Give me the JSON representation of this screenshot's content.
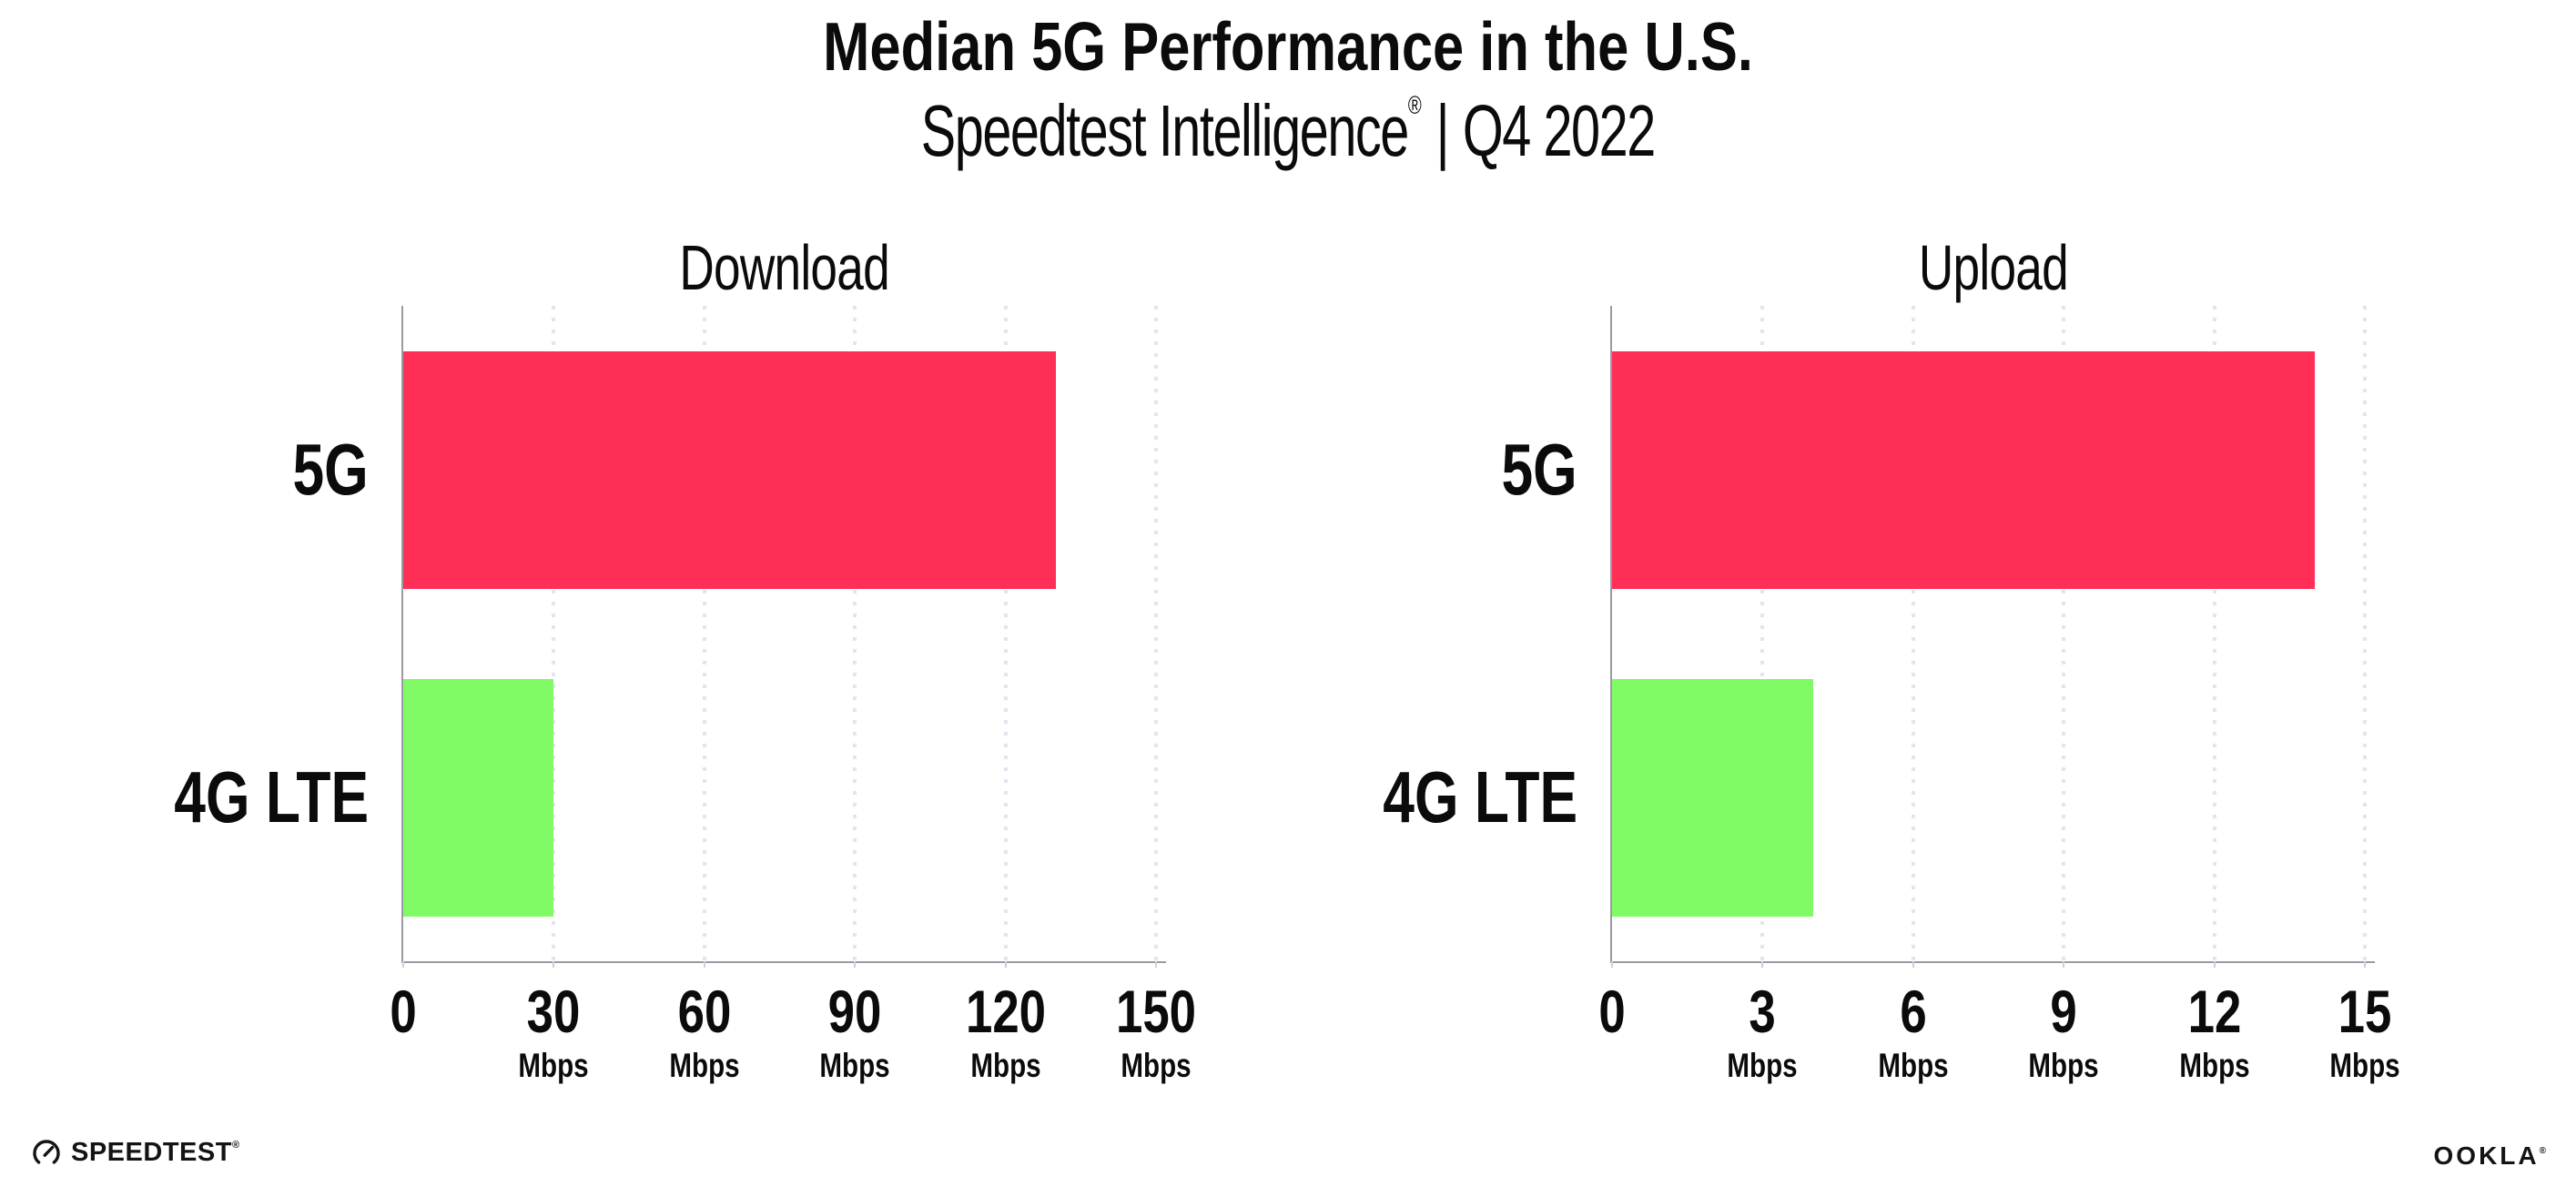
{
  "header": {
    "title": "Median 5G Performance in the U.S.",
    "subtitle": {
      "brand": "Speedtest Intelligence",
      "reg": "®",
      "sep": "|",
      "period": "Q4 2022"
    }
  },
  "chart_data": [
    {
      "type": "bar",
      "orientation": "horizontal",
      "title": "Download",
      "categories": [
        "5G",
        "4G LTE"
      ],
      "values": [
        130,
        30
      ],
      "unit": "Mbps",
      "ticks": [
        0,
        30,
        60,
        90,
        120,
        150
      ],
      "xlim": [
        0,
        152
      ],
      "grid": "dotted-vertical",
      "bar_colors": [
        "#ff2e56",
        "#80fb66"
      ]
    },
    {
      "type": "bar",
      "orientation": "horizontal",
      "title": "Upload",
      "categories": [
        "5G",
        "4G LTE"
      ],
      "values": [
        14,
        4
      ],
      "unit": "Mbps",
      "ticks": [
        0,
        3,
        6,
        9,
        12,
        15
      ],
      "xlim": [
        0,
        15.2
      ],
      "grid": "dotted-vertical",
      "bar_colors": [
        "#ff2e56",
        "#80fb66"
      ]
    }
  ],
  "colors": {
    "bar_5g": "#ff2e56",
    "bar_4g_lte": "#80fb66",
    "gridline": "#e4e4ef",
    "axis": "#9a9aa2",
    "text": "#0b0b0b",
    "logo": "#141414"
  },
  "footer": {
    "speedtest_logo_text": "SPEEDTEST",
    "speedtest_reg": "®",
    "ookla_logo_text": "OOKLA",
    "ookla_reg": "®"
  }
}
